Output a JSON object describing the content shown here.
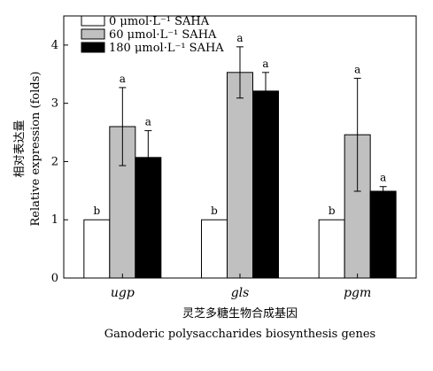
{
  "chart_data": {
    "type": "bar",
    "categories": [
      "ugp",
      "gls",
      "pgm"
    ],
    "series": [
      {
        "name": "0 μmol·L⁻¹ SAHA",
        "color": "#ffffff",
        "values": [
          1.0,
          1.0,
          1.0
        ],
        "errors": [
          0,
          0,
          0
        ],
        "labels": [
          "b",
          "b",
          "b"
        ]
      },
      {
        "name": "60 μmol·L⁻¹ SAHA",
        "color": "#c0c0c0",
        "values": [
          2.6,
          3.53,
          2.46
        ],
        "errors": [
          0.67,
          0.44,
          0.97
        ],
        "labels": [
          "a",
          "a",
          "a"
        ]
      },
      {
        "name": "180 μmol·L⁻¹ SAHA",
        "color": "#000000",
        "values": [
          2.07,
          3.21,
          1.49
        ],
        "errors": [
          0.46,
          0.32,
          0.08
        ],
        "labels": [
          "a",
          "a",
          "a"
        ]
      }
    ],
    "xlabel": [
      "灵芝多糖生物合成基因",
      "Ganoderic polysaccharides biosynthesis genes"
    ],
    "ylabel": [
      "相对表达量",
      "Relative expression (folds)"
    ],
    "ylim": [
      0,
      4.5
    ],
    "yticks": [
      0,
      1,
      2,
      3,
      4
    ],
    "grid": false,
    "legend_position": "top-left"
  }
}
